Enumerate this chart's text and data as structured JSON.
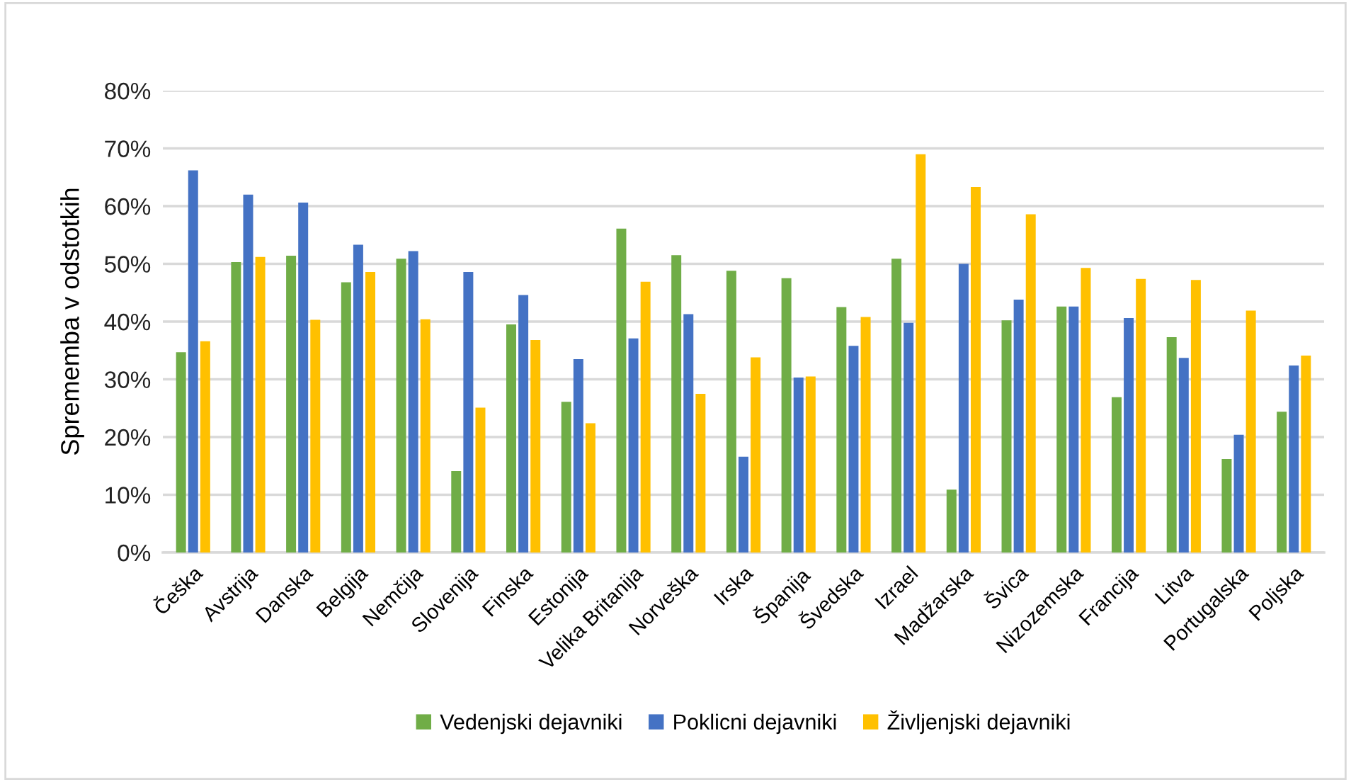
{
  "chart_data": {
    "type": "bar",
    "ylabel": "Sprememba v odstotkih",
    "categories": [
      "Češka",
      "Avstrija",
      "Danska",
      "Belgija",
      "Nemčija",
      "Slovenija",
      "Finska",
      "Estonija",
      "Velika Britanija",
      "Norveška",
      "Irska",
      "Španija",
      "Švedska",
      "Izrael",
      "Madžarska",
      "Švica",
      "Nizozemska",
      "Francija",
      "Litva",
      "Portugalska",
      "Poljska"
    ],
    "series": [
      {
        "name": "Vedenjski dejavniki",
        "color": "#70ad47",
        "values": [
          34.7,
          50.3,
          51.4,
          46.8,
          50.9,
          14.1,
          39.5,
          26.1,
          56.1,
          51.5,
          48.8,
          47.5,
          42.5,
          50.9,
          10.9,
          40.2,
          42.6,
          26.9,
          37.3,
          16.2,
          24.4
        ]
      },
      {
        "name": "Poklicni dejavniki",
        "color": "#4472c4",
        "values": [
          66.2,
          62.0,
          60.6,
          53.3,
          52.2,
          48.6,
          44.6,
          33.5,
          37.1,
          41.3,
          16.6,
          30.3,
          35.8,
          39.8,
          50.0,
          43.8,
          42.6,
          40.6,
          33.7,
          20.4,
          32.4
        ]
      },
      {
        "name": "Življenjski dejavniki",
        "color": "#ffc000",
        "values": [
          36.6,
          51.2,
          40.3,
          48.6,
          40.4,
          25.1,
          36.8,
          22.4,
          46.9,
          27.5,
          33.8,
          30.5,
          40.8,
          69.0,
          63.3,
          58.6,
          49.3,
          47.4,
          47.2,
          41.9,
          34.1
        ]
      }
    ],
    "ylim": [
      0,
      80
    ],
    "yticks": [
      {
        "value": 0,
        "label": "0%"
      },
      {
        "value": 10,
        "label": "10%"
      },
      {
        "value": 20,
        "label": "20%"
      },
      {
        "value": 30,
        "label": "30%"
      },
      {
        "value": 40,
        "label": "40%"
      },
      {
        "value": 50,
        "label": "50%"
      },
      {
        "value": 60,
        "label": "60%"
      },
      {
        "value": 70,
        "label": "70%"
      },
      {
        "value": 80,
        "label": "80%"
      }
    ],
    "grid": "y",
    "legend": "bottom"
  }
}
